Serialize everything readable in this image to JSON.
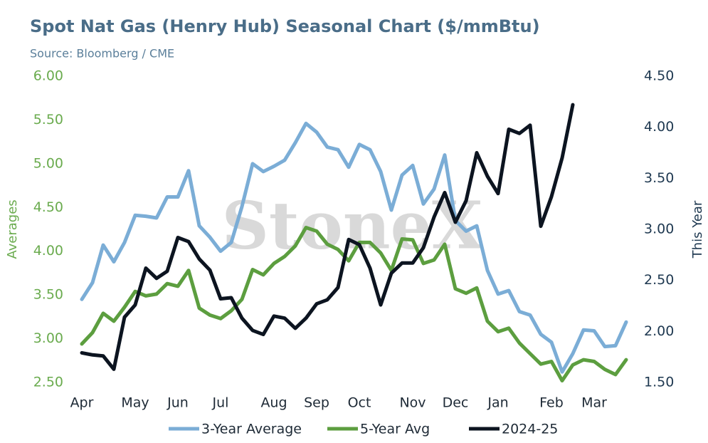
{
  "chart_data": {
    "type": "line",
    "title": "Spot Nat Gas (Henry Hub) Seasonal Chart ($/mmBtu)",
    "subtitle": "Source: Bloomberg / CME",
    "watermark": "StoneX",
    "y_label": "Averages",
    "y2_label": "This Year",
    "categories": [
      "Apr",
      null,
      null,
      null,
      null,
      "May",
      null,
      null,
      null,
      "Jun",
      null,
      null,
      null,
      "Jul",
      null,
      null,
      null,
      null,
      "Aug",
      null,
      null,
      null,
      "Sep",
      null,
      null,
      null,
      "Oct",
      null,
      null,
      null,
      null,
      "Nov",
      null,
      null,
      null,
      "Dec",
      null,
      null,
      null,
      "Jan",
      null,
      null,
      null,
      null,
      "Feb",
      null,
      null,
      null,
      "Mar",
      null,
      null,
      null
    ],
    "series": [
      {
        "name": "3-Year Average",
        "color": "#7badd6",
        "axis": "y",
        "values": [
          3.45,
          3.64,
          4.07,
          3.88,
          4.1,
          4.41,
          4.4,
          4.38,
          4.62,
          4.62,
          4.92,
          4.29,
          4.16,
          4.0,
          4.1,
          4.51,
          5.0,
          4.91,
          4.97,
          5.04,
          5.24,
          5.46,
          5.36,
          5.19,
          5.16,
          4.96,
          5.22,
          5.16,
          4.91,
          4.47,
          4.87,
          4.98,
          4.54,
          4.71,
          5.1,
          4.35,
          4.23,
          4.29,
          3.78,
          3.51,
          3.55,
          3.31,
          3.27,
          3.05,
          2.96,
          2.62,
          2.83,
          3.1,
          3.09,
          2.91,
          2.92,
          3.19
        ]
      },
      {
        "name": "5-Year Avg",
        "color": "#5c9e3f",
        "axis": "y",
        "values": [
          2.94,
          3.07,
          3.29,
          3.2,
          3.36,
          3.54,
          3.49,
          3.51,
          3.63,
          3.6,
          3.78,
          3.35,
          3.27,
          3.23,
          3.32,
          3.45,
          3.79,
          3.73,
          3.86,
          3.94,
          4.06,
          4.27,
          4.23,
          4.08,
          4.02,
          3.89,
          4.1,
          4.1,
          3.98,
          3.78,
          4.14,
          4.13,
          3.86,
          3.9,
          4.08,
          3.57,
          3.52,
          3.58,
          3.2,
          3.08,
          3.12,
          2.95,
          2.83,
          2.71,
          2.74,
          2.52,
          2.7,
          2.76,
          2.74,
          2.65,
          2.59,
          2.76
        ]
      },
      {
        "name": "2024-25",
        "color": "#0c1420",
        "axis": "y2",
        "values": [
          1.79,
          1.77,
          1.76,
          1.63,
          2.14,
          2.26,
          2.62,
          2.52,
          2.59,
          2.92,
          2.88,
          2.71,
          2.6,
          2.32,
          2.33,
          2.13,
          2.01,
          1.97,
          2.15,
          2.13,
          2.03,
          2.13,
          2.27,
          2.31,
          2.43,
          2.9,
          2.85,
          2.62,
          2.26,
          2.57,
          2.67,
          2.67,
          2.82,
          3.12,
          3.36,
          3.07,
          3.28,
          3.75,
          3.52,
          3.35,
          3.98,
          3.94,
          4.02,
          3.03,
          3.32,
          3.7,
          4.22,
          null,
          null,
          null,
          null,
          null
        ]
      }
    ],
    "ylim": [
      2.5,
      6.0
    ],
    "yticks": [
      {
        "value": 2.5,
        "label": "2.50"
      },
      {
        "value": 3,
        "label": "3.00"
      },
      {
        "value": 3.5,
        "label": "3.50"
      },
      {
        "value": 4,
        "label": "4.00"
      },
      {
        "value": 4.5,
        "label": "4.50"
      },
      {
        "value": 5,
        "label": "5.00"
      },
      {
        "value": 5.5,
        "label": "5.50"
      },
      {
        "value": 6,
        "label": "6.00"
      }
    ],
    "y2lim": [
      1.5,
      4.5
    ],
    "y2ticks": [
      {
        "value": 1.5,
        "label": "1.50"
      },
      {
        "value": 2,
        "label": "2.00"
      },
      {
        "value": 2.5,
        "label": "2.50"
      },
      {
        "value": 3,
        "label": "3.00"
      },
      {
        "value": 3.5,
        "label": "3.50"
      },
      {
        "value": 4,
        "label": "4.00"
      },
      {
        "value": 4.5,
        "label": "4.50"
      }
    ],
    "y_color": "#6aab4e",
    "y2_color": "#1e3850",
    "grid": false,
    "legend": "bottom"
  }
}
